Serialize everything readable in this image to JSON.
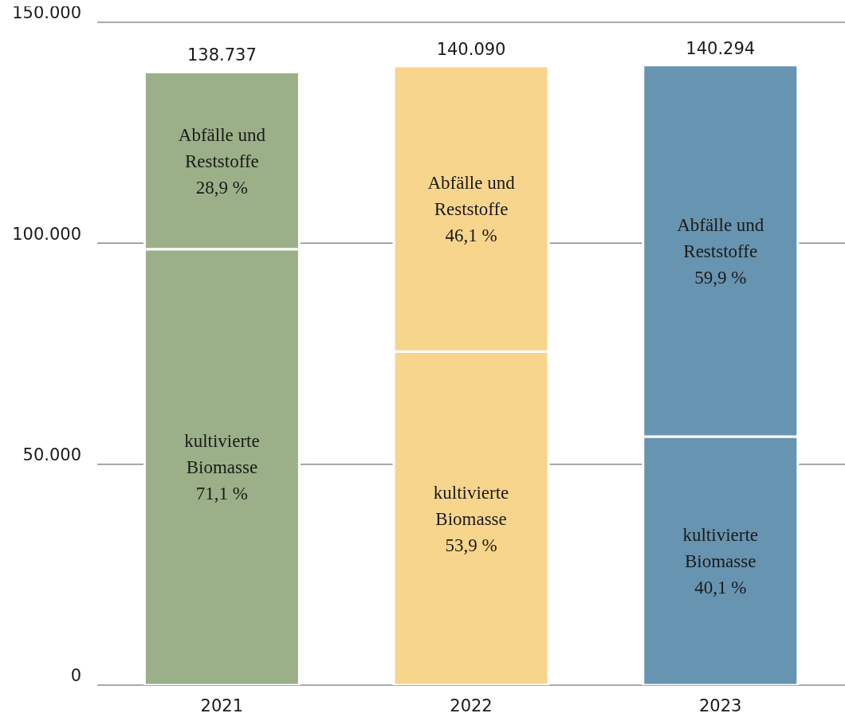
{
  "chart_data": {
    "type": "bar",
    "stacked": true,
    "categories": [
      "2021",
      "2022",
      "2023"
    ],
    "series": [
      {
        "name": "kultivierte Biomasse",
        "colors": [
          "#9bb088",
          "#f8d58c",
          "#6794b0"
        ],
        "values": [
          98642,
          75509,
          56258
        ]
      },
      {
        "name": "Abfälle und Reststoffe",
        "colors": [
          "#9bb088",
          "#f8d58c",
          "#6794b0"
        ],
        "values": [
          40095,
          64581,
          84036
        ]
      }
    ],
    "annotations": [
      "71,1 %",
      "28,9 %",
      "53,9 %",
      "46,1 %",
      "40,1 %",
      "59,9 %"
    ],
    "totals": [
      "138.737",
      "140.090",
      "140.294"
    ],
    "ylim": [
      0,
      150000
    ],
    "yticks": [
      0,
      {
        "value": 50000,
        "label": "50.000"
      },
      {
        "value": 100000,
        "label": "100.000"
      },
      {
        "value": 150000,
        "label": "150.000"
      }
    ],
    "grid": "y",
    "legend": false
  }
}
